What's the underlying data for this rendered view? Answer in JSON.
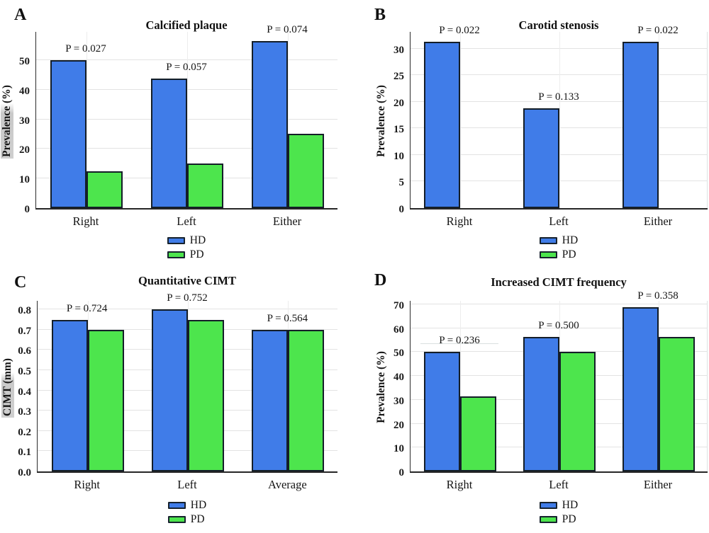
{
  "figure": {
    "colors": {
      "hd": "#407ce8",
      "pd": "#4de54d",
      "bar_border": "#141e28",
      "axis": "#262626",
      "grid_horizontal": "#e3e3e3",
      "grid_vertical": "#ededed",
      "text": "#141414",
      "ylabel_highlight": "#cfcfcf"
    },
    "legend_labels": [
      "HD",
      "PD"
    ]
  },
  "chart_data": [
    {
      "panel_letter": "A",
      "type": "bar",
      "title": "Calcified plaque",
      "ylabel": "Prevalence (%)",
      "ylabel_highlight": true,
      "categories": [
        "Right",
        "Left",
        "Either"
      ],
      "series": [
        {
          "name": "HD",
          "color_key": "hd",
          "values": [
            50,
            43.8,
            56.3
          ]
        },
        {
          "name": "PD",
          "color_key": "pd",
          "values": [
            12.5,
            15,
            25
          ]
        }
      ],
      "p_values": [
        "P = 0.027",
        "P = 0.057",
        "P = 0.074"
      ],
      "ylim": [
        0,
        60
      ],
      "yticks": [
        {
          "label": "0",
          "value": 0
        },
        {
          "label": "10",
          "value": 10
        },
        {
          "label": "20",
          "value": 20
        },
        {
          "label": "30",
          "value": 30
        },
        {
          "label": "40",
          "value": 40
        },
        {
          "label": "50",
          "value": 50
        }
      ],
      "grid": true,
      "legend": [
        "HD",
        "PD"
      ],
      "legend_position": "bottom-center",
      "right_edge_line": false,
      "p_underline_group": null
    },
    {
      "panel_letter": "B",
      "type": "bar",
      "title": "Carotid stenosis",
      "ylabel": "Prevalence (%)",
      "ylabel_highlight": false,
      "categories": [
        "Right",
        "Left",
        "Either"
      ],
      "series": [
        {
          "name": "HD",
          "color_key": "hd",
          "values": [
            31.3,
            18.8,
            31.3
          ]
        },
        {
          "name": "PD",
          "color_key": "pd",
          "values": [
            0,
            0,
            0
          ]
        }
      ],
      "p_values": [
        "P = 0.022",
        "P = 0.133",
        "P = 0.022"
      ],
      "ylim": [
        0,
        33.4
      ],
      "yticks": [
        {
          "label": "0",
          "value": 0
        },
        {
          "label": "5",
          "value": 5
        },
        {
          "label": "10",
          "value": 10
        },
        {
          "label": "15",
          "value": 15
        },
        {
          "label": "20",
          "value": 20
        },
        {
          "label": "25",
          "value": 25
        },
        {
          "label": "30",
          "value": 30
        }
      ],
      "grid": true,
      "legend": [
        "HD",
        "PD"
      ],
      "legend_position": "bottom-center",
      "right_edge_line": true,
      "p_underline_group": null
    },
    {
      "panel_letter": "C",
      "type": "bar",
      "title": "Quantitative CIMT",
      "ylabel": "CIMT (mm)",
      "ylabel_highlight": true,
      "categories": [
        "Right",
        "Left",
        "Average"
      ],
      "series": [
        {
          "name": "HD",
          "color_key": "hd",
          "values": [
            0.75,
            0.8,
            0.7
          ]
        },
        {
          "name": "PD",
          "color_key": "pd",
          "values": [
            0.7,
            0.75,
            0.7
          ]
        }
      ],
      "p_values": [
        "P = 0.724",
        "P = 0.752",
        "P = 0.564"
      ],
      "ylim": [
        0,
        0.85
      ],
      "yticks": [
        {
          "label": "0.0",
          "value": 0
        },
        {
          "label": "0.1",
          "value": 0.1
        },
        {
          "label": "0.2",
          "value": 0.2
        },
        {
          "label": "0.3",
          "value": 0.3
        },
        {
          "label": "0.4",
          "value": 0.4
        },
        {
          "label": "0.5",
          "value": 0.5
        },
        {
          "label": "0.6",
          "value": 0.6
        },
        {
          "label": "0.7",
          "value": 0.7
        },
        {
          "label": "0.8",
          "value": 0.8
        }
      ],
      "grid": true,
      "legend": [
        "HD",
        "PD"
      ],
      "legend_position": "bottom-center",
      "right_edge_line": false,
      "p_underline_group": null
    },
    {
      "panel_letter": "D",
      "type": "bar",
      "title": "Increased CIMT frequency",
      "ylabel": "Prevalence (%)",
      "ylabel_highlight": false,
      "categories": [
        "Right",
        "Left",
        "Either"
      ],
      "series": [
        {
          "name": "HD",
          "color_key": "hd",
          "values": [
            50,
            56.3,
            68.8
          ]
        },
        {
          "name": "PD",
          "color_key": "pd",
          "values": [
            31.3,
            50,
            56.3
          ]
        }
      ],
      "p_values": [
        "P = 0.236",
        "P = 0.500",
        "P = 0.358"
      ],
      "ylim": [
        0,
        72
      ],
      "yticks": [
        {
          "label": "0",
          "value": 0
        },
        {
          "label": "10",
          "value": 10
        },
        {
          "label": "20",
          "value": 20
        },
        {
          "label": "30",
          "value": 30
        },
        {
          "label": "40",
          "value": 40
        },
        {
          "label": "50",
          "value": 50
        },
        {
          "label": "60",
          "value": 60
        },
        {
          "label": "70",
          "value": 70
        }
      ],
      "grid": true,
      "legend": [
        "HD",
        "PD"
      ],
      "legend_position": "bottom-center",
      "right_edge_line": true,
      "p_underline_group": 0
    }
  ]
}
